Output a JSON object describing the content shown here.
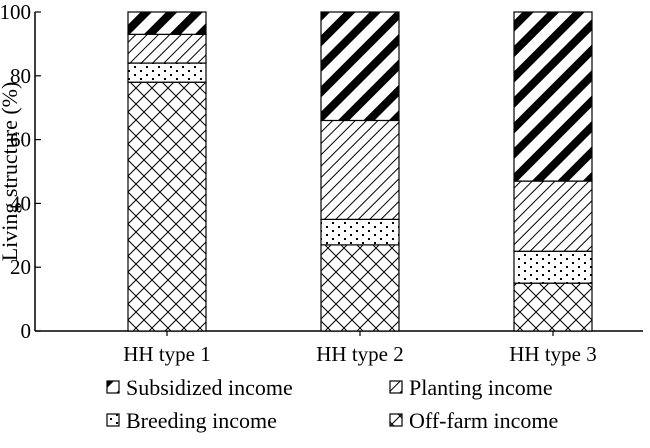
{
  "chart_data": {
    "type": "bar",
    "stacked": true,
    "categories": [
      "HH type 1",
      "HH type 2",
      "HH type 3"
    ],
    "ylabel": "Living structure (%)",
    "xlabel": "",
    "ylim": [
      0,
      100
    ],
    "yticks": [
      0,
      20,
      40,
      60,
      80,
      100
    ],
    "grid": false,
    "legend_position": "bottom",
    "series": [
      {
        "name": "Off-farm income",
        "values": [
          78,
          27,
          15
        ],
        "pattern": "crosshatch-diamond"
      },
      {
        "name": "Breeding income",
        "values": [
          6,
          8,
          10
        ],
        "pattern": "dots"
      },
      {
        "name": "Planting income",
        "values": [
          9,
          31,
          22
        ],
        "pattern": "diagonal-thin"
      },
      {
        "name": "Subsidized income",
        "values": [
          7,
          34,
          53
        ],
        "pattern": "diagonal-thick"
      }
    ],
    "legend_order": [
      "Subsidized income",
      "Planting income",
      "Breeding income",
      "Off-farm income"
    ]
  }
}
